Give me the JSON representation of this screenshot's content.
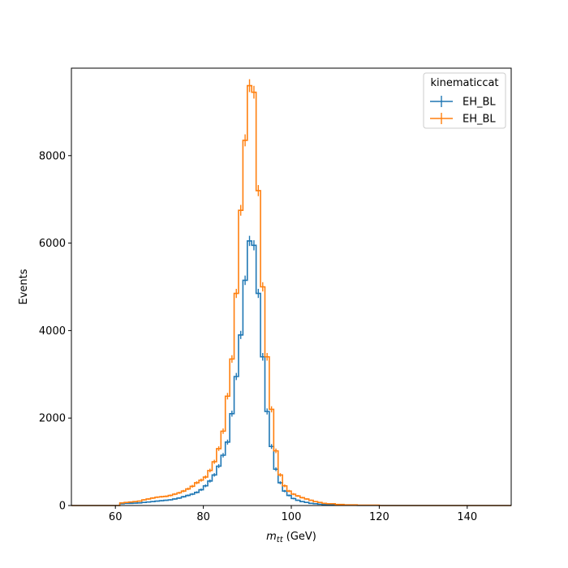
{
  "chart_data": {
    "type": "step-histogram",
    "xlabel_main": "m",
    "xlabel_sub": "tt",
    "xlabel_unit": " (GeV)",
    "ylabel": "Events",
    "xlim": [
      50,
      150
    ],
    "ylim": [
      0,
      10000
    ],
    "xticks": [
      60,
      80,
      100,
      120,
      140
    ],
    "yticks": [
      0,
      2000,
      4000,
      6000,
      8000
    ],
    "legend": {
      "title": "kinematiccat",
      "placement": "top-right"
    },
    "series": [
      {
        "name": "EH_BL",
        "color": "#1f77b4",
        "edges": [
          50,
          61,
          62,
          63,
          64,
          65,
          66,
          67,
          68,
          69,
          70,
          71,
          72,
          73,
          74,
          75,
          76,
          77,
          78,
          79,
          80,
          81,
          82,
          83,
          84,
          85,
          86,
          87,
          88,
          89,
          90,
          91,
          92,
          93,
          94,
          95,
          96,
          97,
          98,
          99,
          100,
          101,
          102,
          103,
          104,
          105,
          106,
          107,
          108,
          110,
          112,
          115,
          120,
          150
        ],
        "values": [
          0,
          40,
          50,
          50,
          55,
          60,
          70,
          80,
          90,
          100,
          110,
          120,
          130,
          150,
          170,
          200,
          230,
          260,
          300,
          360,
          450,
          560,
          700,
          900,
          1150,
          1450,
          2100,
          2950,
          3900,
          5150,
          6050,
          5950,
          4850,
          3400,
          2150,
          1350,
          830,
          520,
          330,
          230,
          160,
          120,
          90,
          70,
          50,
          40,
          30,
          20,
          15,
          10,
          6,
          3,
          0
        ]
      },
      {
        "name": "EH_BL",
        "color": "#ff7f0e",
        "edges": [
          50,
          61,
          62,
          63,
          64,
          65,
          66,
          67,
          68,
          69,
          70,
          71,
          72,
          73,
          74,
          75,
          76,
          77,
          78,
          79,
          80,
          81,
          82,
          83,
          84,
          85,
          86,
          87,
          88,
          89,
          90,
          91,
          92,
          93,
          94,
          95,
          96,
          97,
          98,
          99,
          100,
          101,
          102,
          103,
          104,
          105,
          106,
          107,
          108,
          110,
          112,
          115,
          120,
          150
        ],
        "values": [
          0,
          60,
          70,
          80,
          90,
          100,
          130,
          150,
          170,
          190,
          200,
          210,
          230,
          260,
          290,
          330,
          380,
          440,
          520,
          580,
          650,
          800,
          1000,
          1300,
          1700,
          2500,
          3350,
          4850,
          6750,
          8350,
          9600,
          9450,
          7200,
          5000,
          3400,
          2200,
          1250,
          700,
          450,
          330,
          260,
          220,
          180,
          150,
          120,
          90,
          70,
          50,
          40,
          25,
          15,
          8,
          0
        ]
      }
    ]
  }
}
